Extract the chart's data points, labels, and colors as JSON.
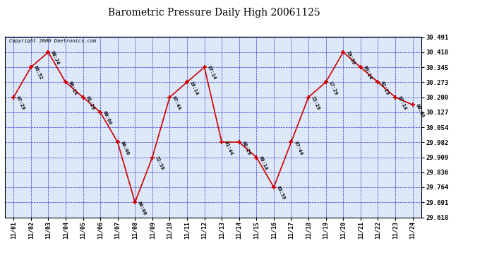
{
  "title": "Barometric Pressure Daily High 20061125",
  "copyright": "Copyright 2006 Daetronics.com",
  "x_labels": [
    "11/01",
    "11/02",
    "11/03",
    "11/04",
    "11/05",
    "11/06",
    "11/07",
    "11/08",
    "11/09",
    "11/10",
    "11/11",
    "11/12",
    "11/13",
    "11/14",
    "11/15",
    "11/16",
    "11/17",
    "11/18",
    "11/19",
    "11/20",
    "11/21",
    "11/22",
    "11/23",
    "11/24"
  ],
  "y_values": [
    30.2,
    30.345,
    30.418,
    30.273,
    30.2,
    30.127,
    29.982,
    29.691,
    29.909,
    30.2,
    30.273,
    30.345,
    29.982,
    29.982,
    29.909,
    29.764,
    29.982,
    30.2,
    30.273,
    30.418,
    30.345,
    30.273,
    30.2,
    30.163
  ],
  "point_labels": [
    "07:29",
    "06:52",
    "08:24",
    "00:14",
    "01:29",
    "00:00",
    "00:00",
    "00:00",
    "22:59",
    "07:44",
    "19:14",
    "07:14",
    "01:44",
    "00:29",
    "09:14",
    "65:59",
    "07:44",
    "23:29",
    "17:29",
    "19:59",
    "06:14",
    "02:29",
    "07:14",
    "00:00"
  ],
  "ylim_min": 29.618,
  "ylim_max": 30.491,
  "yticks": [
    30.491,
    30.418,
    30.345,
    30.273,
    30.2,
    30.127,
    30.054,
    29.982,
    29.909,
    29.836,
    29.764,
    29.691,
    29.618
  ],
  "line_color": "#cc0000",
  "point_color": "#cc0000",
  "bg_color": "#dde8f8",
  "grid_color": "#0000cc",
  "title_color": "#000000",
  "axis_label_color": "#000000",
  "point_label_color": "#000000",
  "border_color": "#000000",
  "fig_width": 6.9,
  "fig_height": 3.75,
  "dpi": 100
}
